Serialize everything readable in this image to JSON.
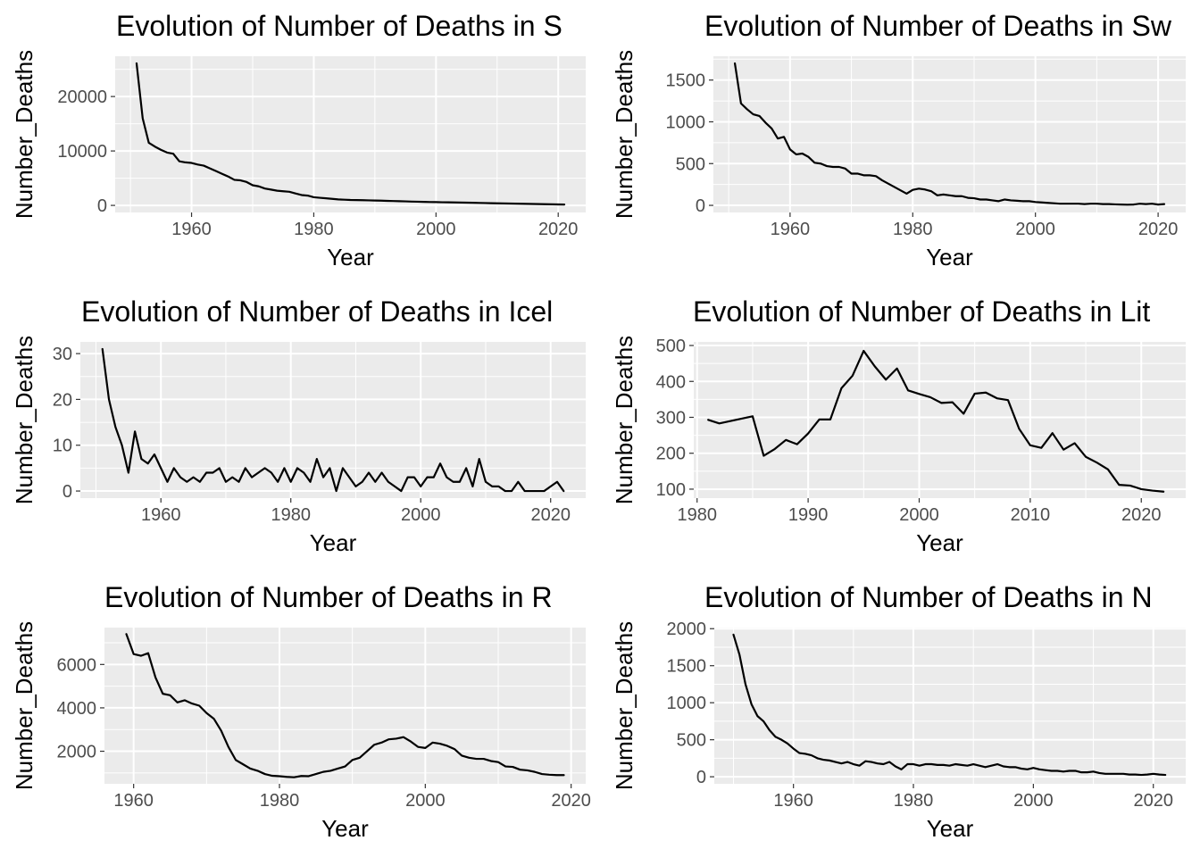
{
  "chart_data": [
    {
      "type": "line",
      "title": "Evolution of Number of Deaths in S",
      "xlabel": "Year",
      "ylabel": "Number_Deaths",
      "xlim": [
        1947.5,
        2024.5
      ],
      "ylim": [
        -1300,
        27400
      ],
      "xticks": [
        1960,
        1980,
        2000,
        2020
      ],
      "yticks": [
        0,
        10000,
        20000
      ],
      "grid": true,
      "x": [
        1951,
        1952,
        1953,
        1954,
        1955,
        1956,
        1957,
        1958,
        1959,
        1960,
        1961,
        1962,
        1963,
        1964,
        1965,
        1966,
        1967,
        1968,
        1969,
        1970,
        1971,
        1972,
        1973,
        1974,
        1975,
        1976,
        1977,
        1978,
        1979,
        1980,
        1981,
        1982,
        1983,
        1984,
        1985,
        1986,
        1987,
        1988,
        1989,
        1990,
        1991,
        1992,
        1993,
        1994,
        1995,
        1996,
        1997,
        1998,
        1999,
        2000,
        2001,
        2002,
        2003,
        2004,
        2005,
        2006,
        2007,
        2008,
        2009,
        2010,
        2011,
        2012,
        2013,
        2014,
        2015,
        2016,
        2017,
        2018,
        2019,
        2020,
        2021
      ],
      "series": [
        {
          "values": [
            26100,
            16000,
            11500,
            10800,
            10200,
            9700,
            9500,
            8100,
            7900,
            7800,
            7500,
            7300,
            6800,
            6300,
            5800,
            5300,
            4700,
            4600,
            4300,
            3700,
            3500,
            3100,
            2900,
            2700,
            2600,
            2500,
            2200,
            1900,
            1800,
            1500,
            1400,
            1300,
            1200,
            1100,
            1050,
            1000,
            980,
            950,
            920,
            900,
            870,
            830,
            800,
            770,
            740,
            700,
            680,
            650,
            620,
            600,
            580,
            560,
            540,
            520,
            500,
            480,
            450,
            430,
            400,
            380,
            360,
            340,
            320,
            300,
            280,
            260,
            240,
            220,
            200,
            180,
            160
          ]
        }
      ]
    },
    {
      "type": "line",
      "title": "Evolution of Number of Deaths in Sw",
      "xlabel": "Year",
      "ylabel": "Number_Deaths",
      "xlim": [
        1947.5,
        2024.5
      ],
      "ylim": [
        -85,
        1785
      ],
      "xticks": [
        1960,
        1980,
        2000,
        2020
      ],
      "yticks": [
        0,
        500,
        1000,
        1500
      ],
      "grid": true,
      "x": [
        1951,
        1952,
        1953,
        1954,
        1955,
        1956,
        1957,
        1958,
        1959,
        1960,
        1961,
        1962,
        1963,
        1964,
        1965,
        1966,
        1967,
        1968,
        1969,
        1970,
        1971,
        1972,
        1973,
        1974,
        1975,
        1976,
        1977,
        1978,
        1979,
        1980,
        1981,
        1982,
        1983,
        1984,
        1985,
        1986,
        1987,
        1988,
        1989,
        1990,
        1991,
        1992,
        1993,
        1994,
        1995,
        1996,
        1997,
        1998,
        1999,
        2000,
        2001,
        2002,
        2003,
        2004,
        2005,
        2006,
        2007,
        2008,
        2009,
        2010,
        2011,
        2012,
        2013,
        2014,
        2015,
        2016,
        2017,
        2018,
        2019,
        2020,
        2021
      ],
      "series": [
        {
          "values": [
            1700,
            1220,
            1150,
            1090,
            1070,
            990,
            920,
            800,
            820,
            670,
            610,
            620,
            580,
            510,
            500,
            470,
            460,
            460,
            440,
            380,
            380,
            360,
            360,
            350,
            300,
            260,
            220,
            180,
            140,
            185,
            200,
            190,
            170,
            120,
            130,
            120,
            110,
            110,
            90,
            85,
            70,
            70,
            60,
            50,
            70,
            60,
            55,
            50,
            50,
            40,
            35,
            30,
            25,
            20,
            20,
            20,
            20,
            15,
            20,
            20,
            15,
            15,
            12,
            10,
            8,
            10,
            20,
            15,
            20,
            10,
            15
          ]
        }
      ]
    },
    {
      "type": "line",
      "title": "Evolution of Number of Deaths in Icel",
      "xlabel": "Year",
      "ylabel": "Number_Deaths",
      "xlim": [
        1947.6,
        2025.4
      ],
      "ylim": [
        -1.55,
        32.55
      ],
      "xticks": [
        1960,
        1980,
        2000,
        2020
      ],
      "yticks": [
        0,
        10,
        20,
        30
      ],
      "grid": true,
      "x": [
        1951,
        1952,
        1953,
        1954,
        1955,
        1956,
        1957,
        1958,
        1959,
        1960,
        1961,
        1962,
        1963,
        1964,
        1965,
        1966,
        1967,
        1968,
        1969,
        1970,
        1971,
        1972,
        1973,
        1974,
        1975,
        1976,
        1977,
        1978,
        1979,
        1980,
        1981,
        1982,
        1983,
        1984,
        1985,
        1986,
        1987,
        1988,
        1989,
        1990,
        1991,
        1992,
        1993,
        1994,
        1995,
        1996,
        1997,
        1998,
        1999,
        2000,
        2001,
        2002,
        2003,
        2004,
        2005,
        2006,
        2007,
        2008,
        2009,
        2010,
        2011,
        2012,
        2013,
        2014,
        2015,
        2016,
        2017,
        2018,
        2019,
        2020,
        2021,
        2022
      ],
      "series": [
        {
          "values": [
            31,
            20,
            14,
            10,
            4,
            13,
            7,
            6,
            8,
            5,
            2,
            5,
            3,
            2,
            3,
            2,
            4,
            4,
            5,
            2,
            3,
            2,
            5,
            3,
            4,
            5,
            4,
            2,
            5,
            2,
            5,
            4,
            2,
            7,
            3,
            5,
            0,
            5,
            3,
            1,
            2,
            4,
            2,
            4,
            2,
            1,
            0,
            3,
            3,
            1,
            3,
            3,
            6,
            3,
            2,
            2,
            5,
            1,
            7,
            2,
            1,
            1,
            0,
            0,
            2,
            0,
            0,
            0,
            0,
            1,
            2,
            0
          ]
        }
      ]
    },
    {
      "type": "line",
      "title": "Evolution of Number of Deaths in Lit",
      "xlabel": "Year",
      "ylabel": "Number_Deaths",
      "xlim": [
        1979.7,
        2024.0
      ],
      "ylim": [
        75,
        510
      ],
      "xticks": [
        1980,
        1990,
        2000,
        2010,
        2020
      ],
      "yticks": [
        100,
        200,
        300,
        400,
        500
      ],
      "grid": true,
      "x": [
        1981,
        1982,
        1985,
        1986,
        1987,
        1988,
        1989,
        1990,
        1991,
        1992,
        1993,
        1994,
        1995,
        1996,
        1997,
        1998,
        1999,
        2000,
        2001,
        2002,
        2003,
        2004,
        2005,
        2006,
        2007,
        2008,
        2009,
        2010,
        2011,
        2012,
        2013,
        2014,
        2015,
        2016,
        2017,
        2018,
        2019,
        2020,
        2021,
        2022
      ],
      "series": [
        {
          "values": [
            293,
            283,
            303,
            193,
            212,
            237,
            225,
            255,
            294,
            294,
            381,
            416,
            485,
            442,
            405,
            436,
            375,
            365,
            356,
            340,
            342,
            310,
            366,
            369,
            353,
            348,
            268,
            222,
            215,
            256,
            210,
            228,
            190,
            174,
            155,
            112,
            110,
            100,
            96,
            93
          ]
        }
      ]
    },
    {
      "type": "line",
      "title": "Evolution of Number of Deaths in R",
      "xlabel": "Year",
      "ylabel": "Number_Deaths",
      "xlim": [
        1956.0,
        2022.0
      ],
      "ylim": [
        500,
        7700
      ],
      "xticks": [
        1960,
        1980,
        2000,
        2020
      ],
      "yticks": [
        2000,
        4000,
        6000
      ],
      "grid": true,
      "x": [
        1959,
        1960,
        1961,
        1962,
        1963,
        1964,
        1965,
        1966,
        1967,
        1968,
        1969,
        1970,
        1971,
        1972,
        1973,
        1974,
        1975,
        1976,
        1977,
        1978,
        1979,
        1980,
        1981,
        1982,
        1983,
        1984,
        1985,
        1986,
        1987,
        1988,
        1989,
        1990,
        1991,
        1992,
        1993,
        1994,
        1995,
        1996,
        1997,
        1998,
        1999,
        2000,
        2001,
        2002,
        2003,
        2004,
        2005,
        2006,
        2007,
        2008,
        2009,
        2010,
        2011,
        2012,
        2013,
        2014,
        2015,
        2016,
        2017,
        2018,
        2019
      ],
      "series": [
        {
          "values": [
            7400,
            6480,
            6400,
            6520,
            5400,
            4650,
            4580,
            4250,
            4350,
            4200,
            4100,
            3760,
            3500,
            2950,
            2200,
            1600,
            1400,
            1200,
            1100,
            950,
            870,
            850,
            820,
            800,
            860,
            850,
            950,
            1050,
            1100,
            1200,
            1300,
            1600,
            1700,
            2000,
            2300,
            2400,
            2550,
            2580,
            2650,
            2450,
            2200,
            2150,
            2400,
            2350,
            2250,
            2100,
            1800,
            1700,
            1650,
            1650,
            1550,
            1500,
            1300,
            1280,
            1150,
            1120,
            1050,
            950,
            920,
            900,
            900
          ]
        }
      ]
    },
    {
      "type": "line",
      "title": "Evolution of Number of Deaths in N",
      "xlabel": "Year",
      "ylabel": "Number_Deaths",
      "xlim": [
        1946.8,
        2025.4
      ],
      "ylim": [
        -95,
        2015
      ],
      "xticks": [
        1960,
        1980,
        2000,
        2020
      ],
      "yticks": [
        0,
        500,
        1000,
        1500,
        2000
      ],
      "grid": true,
      "x": [
        1950,
        1951,
        1952,
        1953,
        1954,
        1955,
        1956,
        1957,
        1958,
        1959,
        1960,
        1961,
        1962,
        1963,
        1964,
        1965,
        1966,
        1967,
        1968,
        1969,
        1970,
        1971,
        1972,
        1973,
        1974,
        1975,
        1976,
        1977,
        1978,
        1979,
        1980,
        1981,
        1982,
        1983,
        1984,
        1985,
        1986,
        1987,
        1988,
        1989,
        1990,
        1991,
        1992,
        1993,
        1994,
        1995,
        1996,
        1997,
        1998,
        1999,
        2000,
        2001,
        2002,
        2003,
        2004,
        2005,
        2006,
        2007,
        2008,
        2009,
        2010,
        2011,
        2012,
        2013,
        2014,
        2015,
        2016,
        2017,
        2018,
        2019,
        2020,
        2021,
        2022
      ],
      "series": [
        {
          "values": [
            1920,
            1650,
            1250,
            980,
            820,
            750,
            630,
            540,
            500,
            450,
            380,
            320,
            310,
            290,
            250,
            230,
            220,
            200,
            180,
            200,
            170,
            150,
            210,
            200,
            180,
            170,
            200,
            140,
            100,
            170,
            170,
            150,
            170,
            170,
            160,
            160,
            150,
            170,
            160,
            150,
            170,
            150,
            130,
            150,
            170,
            140,
            130,
            130,
            110,
            100,
            120,
            100,
            90,
            80,
            80,
            70,
            80,
            80,
            60,
            60,
            70,
            50,
            40,
            40,
            40,
            40,
            30,
            30,
            25,
            30,
            40,
            30,
            25
          ]
        }
      ]
    }
  ]
}
